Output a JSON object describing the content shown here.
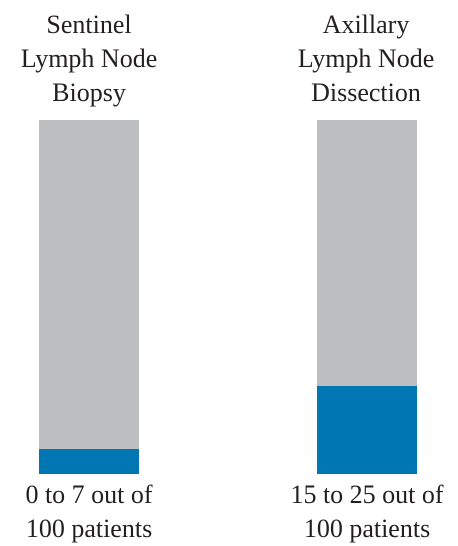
{
  "chart_data": {
    "type": "bar",
    "title": "",
    "xlabel": "",
    "ylabel": "",
    "ylim": [
      0,
      100
    ],
    "grid": false,
    "colors": {
      "background_bar": "#bcbec0",
      "filled_bar": "#0077b3"
    },
    "bars": [
      {
        "category_lines": [
          "Sentinel",
          "Lymph Node",
          "Biopsy"
        ],
        "caption_lines": [
          "0 to 7 out of",
          "100 patients"
        ],
        "value": 7,
        "total": 100
      },
      {
        "category_lines": [
          "Axillary",
          "Lymph Node",
          "Dissection"
        ],
        "caption_lines": [
          "15 to 25 out of",
          "100 patients"
        ],
        "value": 25,
        "total": 100
      }
    ]
  }
}
